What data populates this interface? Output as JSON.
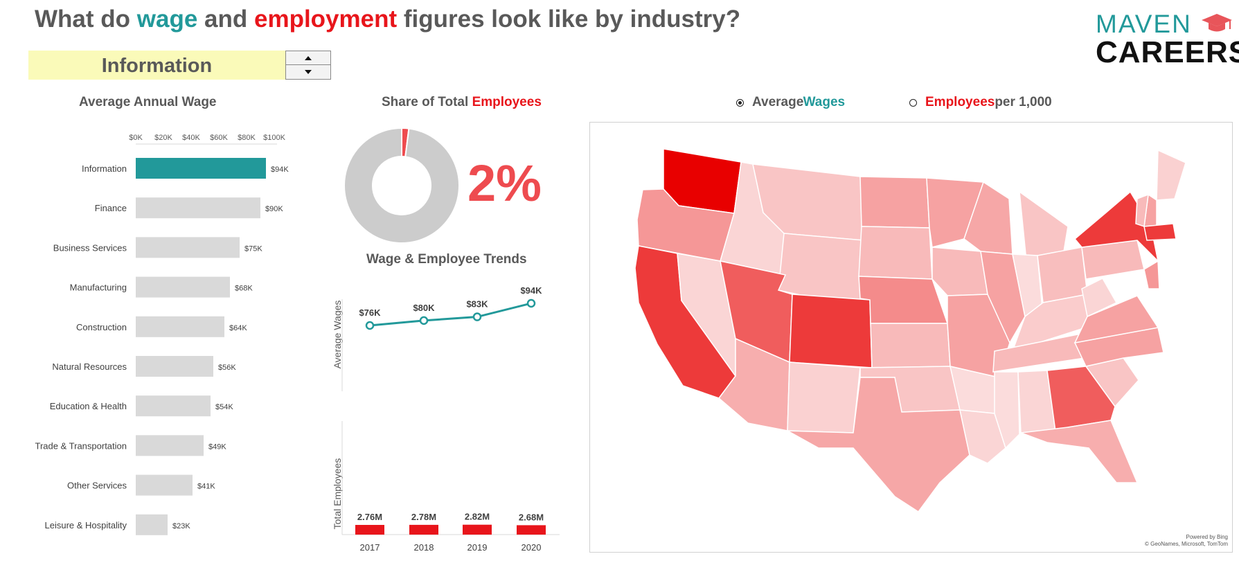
{
  "title": {
    "part1": "What do ",
    "wage_word": "wage",
    "part2": " and ",
    "employment_word": "employment",
    "part3": " figures look like by industry?"
  },
  "selector": {
    "value": "Information",
    "up_icon": "triangle-up-icon",
    "down_icon": "triangle-down-icon"
  },
  "logo": {
    "line1": "MAVEN",
    "line2": "CAREERS",
    "icon": "graduation-cap-icon"
  },
  "colors": {
    "teal": "#22999a",
    "red": "#e8151b",
    "gray_bar": "#d9d9d9",
    "donut_gray": "#cccccc",
    "pct_red": "#ee4b4f"
  },
  "sections": {
    "wage_title": "Average Annual Wage",
    "share_title_prefix": "Share of Total ",
    "share_title_highlight": "Employees",
    "trends_title": "Wage & Employee Trends"
  },
  "map_toggle": {
    "option1_prefix": "Average ",
    "option1_highlight": "Wages",
    "option1_selected": true,
    "option2_highlight": "Employees",
    "option2_suffix": " per 1,000",
    "option2_selected": false
  },
  "map_credit": {
    "line1": "Powered by Bing",
    "line2": "© GeoNames, Microsoft, TomTom"
  },
  "chart_data": [
    {
      "type": "bar",
      "orientation": "horizontal",
      "title": "Average Annual Wage",
      "axis_ticks": [
        "$0K",
        "$20K",
        "$40K",
        "$60K",
        "$80K",
        "$100K"
      ],
      "xlim": [
        0,
        100
      ],
      "categories": [
        "Information",
        "Finance",
        "Business Services",
        "Manufacturing",
        "Construction",
        "Natural Resources",
        "Education & Health",
        "Trade & Transportation",
        "Other Services",
        "Leisure & Hospitality"
      ],
      "values": [
        94,
        90,
        75,
        68,
        64,
        56,
        54,
        49,
        41,
        23
      ],
      "labels": [
        "$94K",
        "$90K",
        "$75K",
        "$68K",
        "$64K",
        "$56K",
        "$54K",
        "$49K",
        "$41K",
        "$23K"
      ],
      "highlight": "Information"
    },
    {
      "type": "pie",
      "title": "Share of Total Employees",
      "slices": [
        {
          "label": "Information",
          "value": 2
        },
        {
          "label": "Other industries",
          "value": 98
        }
      ],
      "center_label": "2%"
    },
    {
      "type": "line",
      "title": "Wage & Employee Trends",
      "ylabel": "Average Wages",
      "x": [
        "2017",
        "2018",
        "2019",
        "2020"
      ],
      "values": [
        76,
        80,
        83,
        94
      ],
      "labels": [
        "$76K",
        "$80K",
        "$83K",
        "$94K"
      ]
    },
    {
      "type": "bar",
      "ylabel": "Total Employees",
      "categories": [
        "2017",
        "2018",
        "2019",
        "2020"
      ],
      "values": [
        2.76,
        2.78,
        2.82,
        2.68
      ],
      "labels": [
        "2.76M",
        "2.78M",
        "2.82M",
        "2.68M"
      ]
    }
  ],
  "map_states": [
    {
      "name": "Washington",
      "intensity": 1.0
    },
    {
      "name": "Oregon",
      "intensity": 0.35
    },
    {
      "name": "California",
      "intensity": 0.75
    },
    {
      "name": "Nevada",
      "intensity": 0.08
    },
    {
      "name": "Idaho",
      "intensity": 0.08
    },
    {
      "name": "Montana",
      "intensity": 0.15
    },
    {
      "name": "Wyoming",
      "intensity": 0.15
    },
    {
      "name": "Utah",
      "intensity": 0.6
    },
    {
      "name": "Colorado",
      "intensity": 0.75
    },
    {
      "name": "Arizona",
      "intensity": 0.25
    },
    {
      "name": "New Mexico",
      "intensity": 0.1
    },
    {
      "name": "North Dakota",
      "intensity": 0.3
    },
    {
      "name": "South Dakota",
      "intensity": 0.2
    },
    {
      "name": "Nebraska",
      "intensity": 0.4
    },
    {
      "name": "Kansas",
      "intensity": 0.2
    },
    {
      "name": "Oklahoma",
      "intensity": 0.15
    },
    {
      "name": "Texas",
      "intensity": 0.28
    },
    {
      "name": "Minnesota",
      "intensity": 0.3
    },
    {
      "name": "Iowa",
      "intensity": 0.2
    },
    {
      "name": "Missouri",
      "intensity": 0.3
    },
    {
      "name": "Arkansas",
      "intensity": 0.05
    },
    {
      "name": "Louisiana",
      "intensity": 0.08
    },
    {
      "name": "Wisconsin",
      "intensity": 0.28
    },
    {
      "name": "Illinois",
      "intensity": 0.3
    },
    {
      "name": "Michigan",
      "intensity": 0.15
    },
    {
      "name": "Indiana",
      "intensity": 0.05
    },
    {
      "name": "Ohio",
      "intensity": 0.18
    },
    {
      "name": "Kentucky",
      "intensity": 0.12
    },
    {
      "name": "Tennessee",
      "intensity": 0.2
    },
    {
      "name": "Mississippi",
      "intensity": 0.05
    },
    {
      "name": "Alabama",
      "intensity": 0.08
    },
    {
      "name": "Georgia",
      "intensity": 0.6
    },
    {
      "name": "Florida",
      "intensity": 0.25
    },
    {
      "name": "South Carolina",
      "intensity": 0.15
    },
    {
      "name": "North Carolina",
      "intensity": 0.3
    },
    {
      "name": "Virginia",
      "intensity": 0.3
    },
    {
      "name": "West Virginia",
      "intensity": 0.08
    },
    {
      "name": "Pennsylvania",
      "intensity": 0.2
    },
    {
      "name": "New York",
      "intensity": 0.75
    },
    {
      "name": "Maine",
      "intensity": 0.1
    },
    {
      "name": "New Hampshire",
      "intensity": 0.3
    },
    {
      "name": "Vermont",
      "intensity": 0.2
    },
    {
      "name": "Massachusetts",
      "intensity": 0.75
    },
    {
      "name": "New Jersey",
      "intensity": 0.35
    }
  ]
}
